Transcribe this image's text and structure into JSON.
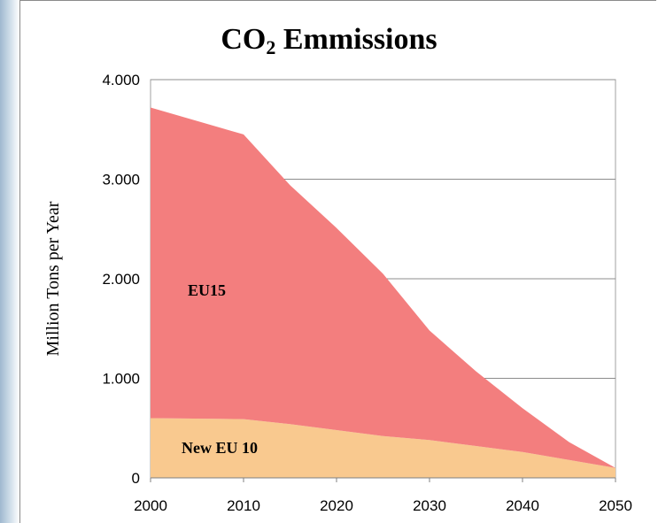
{
  "chart_data": {
    "type": "area",
    "stacked": true,
    "title": "CO",
    "title_subscript": "2",
    "title_rest": " Emmissions",
    "ylabel": "Million Tons per Year",
    "xlabel": "",
    "x": [
      2000,
      2010,
      2015,
      2020,
      2025,
      2030,
      2035,
      2040,
      2045,
      2050
    ],
    "xlim": [
      2000,
      2050
    ],
    "ylim": [
      0,
      4000
    ],
    "x_ticks": [
      "2000",
      "2010",
      "2020",
      "2030",
      "2040",
      "2050"
    ],
    "y_ticks": [
      "0",
      "1.000",
      "2.000",
      "3.000",
      "4.000"
    ],
    "grid": "horizontal",
    "series": [
      {
        "name": "New EU 10",
        "color": "#f9c98f",
        "values": [
          600,
          590,
          540,
          480,
          420,
          380,
          320,
          260,
          180,
          100
        ]
      },
      {
        "name": "EU15",
        "color": "#f37e7e",
        "values": [
          3120,
          2860,
          2400,
          2030,
          1630,
          1100,
          750,
          440,
          180,
          0
        ]
      }
    ],
    "area_labels": [
      "EU15",
      "New EU 10"
    ]
  }
}
